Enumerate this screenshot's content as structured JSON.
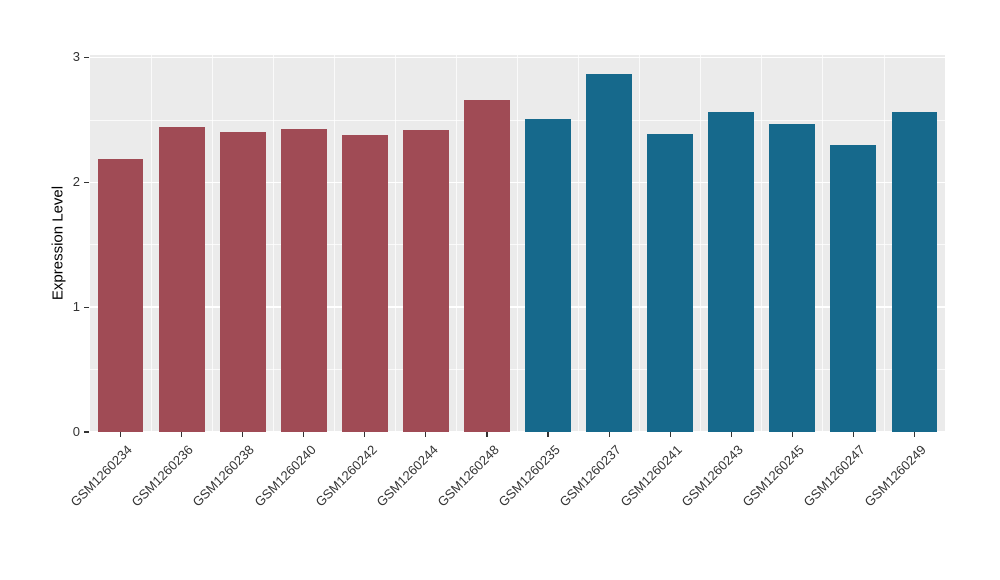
{
  "figure": {
    "background": "#FFFFFF",
    "panel_background": "#EBEBEB",
    "grid_color": "#FFFFFF",
    "tick_label_color": "#333333"
  },
  "chart_data": {
    "type": "bar",
    "title": "",
    "xlabel": "",
    "ylabel": "Expression Level",
    "ylim": [
      0,
      3.02
    ],
    "yticks": [
      0,
      1,
      2,
      3
    ],
    "yticks_minor": [
      0.5,
      1.5,
      2.5
    ],
    "grid": true,
    "legend": "none",
    "categories": [
      "GSM1260234",
      "GSM1260236",
      "GSM1260238",
      "GSM1260240",
      "GSM1260242",
      "GSM1260244",
      "GSM1260248",
      "GSM1260235",
      "GSM1260237",
      "GSM1260241",
      "GSM1260243",
      "GSM1260245",
      "GSM1260247",
      "GSM1260249"
    ],
    "values": [
      2.19,
      2.44,
      2.4,
      2.43,
      2.38,
      2.42,
      2.66,
      2.51,
      2.87,
      2.39,
      2.56,
      2.47,
      2.3,
      2.56
    ],
    "bar_groups": [
      "group1",
      "group1",
      "group1",
      "group1",
      "group1",
      "group1",
      "group1",
      "group2",
      "group2",
      "group2",
      "group2",
      "group2",
      "group2",
      "group2"
    ],
    "group_colors": {
      "group1": "#A04B55",
      "group2": "#16698C"
    },
    "bar_width_fraction": 0.75
  }
}
